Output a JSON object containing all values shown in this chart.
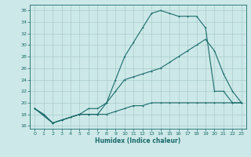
{
  "xlabel": "Humidex (Indice chaleur)",
  "bg_color": "#cde8e8",
  "grid_color": "#aacccc",
  "line_color": "#1a6b6b",
  "xlim": [
    -0.5,
    23.5
  ],
  "ylim": [
    15.5,
    37.0
  ],
  "xticks": [
    0,
    1,
    2,
    3,
    4,
    5,
    6,
    7,
    8,
    9,
    10,
    11,
    12,
    13,
    14,
    15,
    16,
    17,
    18,
    19,
    20,
    21,
    22,
    23
  ],
  "yticks": [
    16,
    18,
    20,
    22,
    24,
    26,
    28,
    30,
    32,
    34,
    36
  ],
  "line1_x": [
    0,
    1,
    2,
    3,
    4,
    5,
    6,
    7,
    8,
    9,
    10,
    11,
    12,
    13,
    14,
    15,
    16,
    17,
    18,
    19,
    20,
    21,
    22,
    23
  ],
  "line1_y": [
    19,
    18,
    16.5,
    17,
    17.5,
    18,
    18,
    18,
    18,
    18.5,
    19,
    19.5,
    19.5,
    20,
    20,
    20,
    20,
    20,
    20,
    20,
    20,
    20,
    20,
    20
  ],
  "line2_x": [
    0,
    1,
    2,
    3,
    4,
    5,
    6,
    7,
    8,
    9,
    10,
    11,
    12,
    13,
    14,
    15,
    16,
    17,
    18,
    19,
    20,
    21,
    22,
    23
  ],
  "line2_y": [
    19,
    18,
    16.5,
    17,
    17.5,
    18,
    18,
    18,
    20,
    24,
    28,
    30.5,
    33,
    35.5,
    36,
    35.5,
    35,
    35,
    35,
    33,
    22,
    22,
    20,
    20
  ],
  "line3_x": [
    0,
    2,
    3,
    4,
    5,
    6,
    7,
    8,
    9,
    10,
    11,
    12,
    13,
    14,
    15,
    16,
    17,
    18,
    19,
    20,
    21,
    22,
    23
  ],
  "line3_y": [
    19,
    16.5,
    17,
    17.5,
    18,
    19,
    19,
    20,
    22,
    24,
    24.5,
    25,
    25.5,
    26,
    27,
    28,
    29,
    30,
    31,
    29,
    25,
    22,
    20
  ]
}
